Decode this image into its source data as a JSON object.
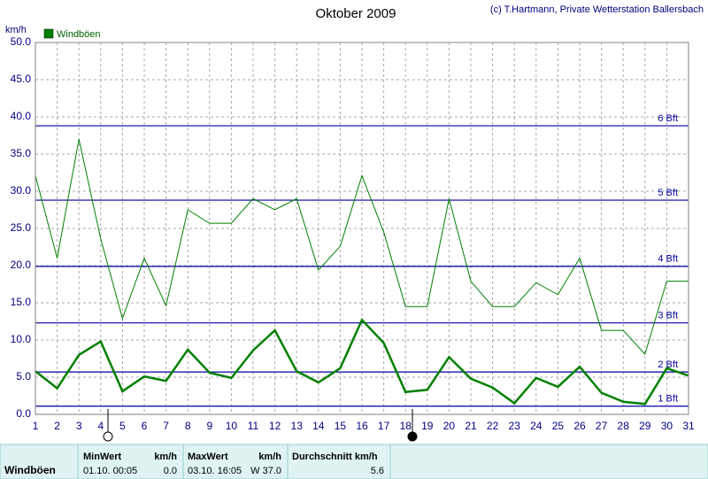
{
  "chart_data": {
    "type": "line",
    "title": "Oktober 2009",
    "credit": "(c) T.Hartmann, Private Wetterstation Ballersbach",
    "y_label": "km/h",
    "x": [
      1,
      2,
      3,
      4,
      5,
      6,
      7,
      8,
      9,
      10,
      11,
      12,
      13,
      14,
      15,
      16,
      17,
      18,
      19,
      20,
      21,
      22,
      23,
      24,
      25,
      26,
      27,
      28,
      29,
      30,
      31
    ],
    "xlim": [
      1,
      31
    ],
    "xticks": [
      1,
      2,
      3,
      4,
      5,
      6,
      7,
      8,
      9,
      10,
      11,
      12,
      13,
      14,
      15,
      16,
      17,
      18,
      19,
      20,
      21,
      22,
      23,
      24,
      25,
      26,
      27,
      28,
      29,
      30,
      31
    ],
    "ylim": [
      0,
      50
    ],
    "yticks": [
      {
        "value": 0,
        "label": "0.0"
      },
      {
        "value": 5,
        "label": "5.0"
      },
      {
        "value": 10,
        "label": "10.0"
      },
      {
        "value": 15,
        "label": "15.0"
      },
      {
        "value": 20,
        "label": "20.0"
      },
      {
        "value": 25,
        "label": "25.0"
      },
      {
        "value": 30,
        "label": "30.0"
      },
      {
        "value": 35,
        "label": "35.0"
      },
      {
        "value": 40,
        "label": "40.0"
      },
      {
        "value": 45,
        "label": "45.0"
      },
      {
        "value": 50,
        "label": "50.0"
      }
    ],
    "grid": true,
    "series": [
      {
        "name": "Windböen",
        "color": "#008000",
        "width": 1,
        "values": [
          32.1,
          21.0,
          37.0,
          23.6,
          12.9,
          21.0,
          14.6,
          27.5,
          25.7,
          25.7,
          29.0,
          27.5,
          29.0,
          19.4,
          22.6,
          32.1,
          24.5,
          14.5,
          14.5,
          29.0,
          17.9,
          14.5,
          14.5,
          17.7,
          16.1,
          21.0,
          11.3,
          11.3,
          8.1,
          17.9,
          17.9
        ]
      },
      {
        "color": "#008000",
        "width": 2.5,
        "values": [
          5.8,
          3.5,
          8.0,
          9.8,
          3.1,
          5.1,
          4.5,
          8.7,
          5.6,
          4.9,
          8.6,
          11.3,
          5.8,
          4.3,
          6.2,
          12.7,
          9.6,
          3.0,
          3.3,
          7.7,
          4.8,
          3.6,
          1.5,
          4.9,
          3.7,
          6.4,
          2.9,
          1.7,
          1.4,
          6.2,
          5.2
        ]
      }
    ],
    "bft_lines": [
      {
        "value": 1.1,
        "label": "1 Bft"
      },
      {
        "value": 5.7,
        "label": "2 Bft"
      },
      {
        "value": 12.3,
        "label": "3 Bft"
      },
      {
        "value": 19.9,
        "label": "4 Bft"
      },
      {
        "value": 28.8,
        "label": "5 Bft"
      },
      {
        "value": 38.8,
        "label": "6 Bft"
      }
    ],
    "bft_color": "#0000a0"
  },
  "summary": {
    "label": "Windböen",
    "min": {
      "header": "MinWert",
      "unit": "km/h",
      "time": "01.10.  00:05",
      "value": "0.0"
    },
    "max": {
      "header": "MaxWert",
      "unit": "km/h",
      "time": "03.10.  16:05",
      "value": "W 37.0"
    },
    "avg": {
      "header": "Durchschnitt km/h",
      "value": "5.6"
    }
  }
}
